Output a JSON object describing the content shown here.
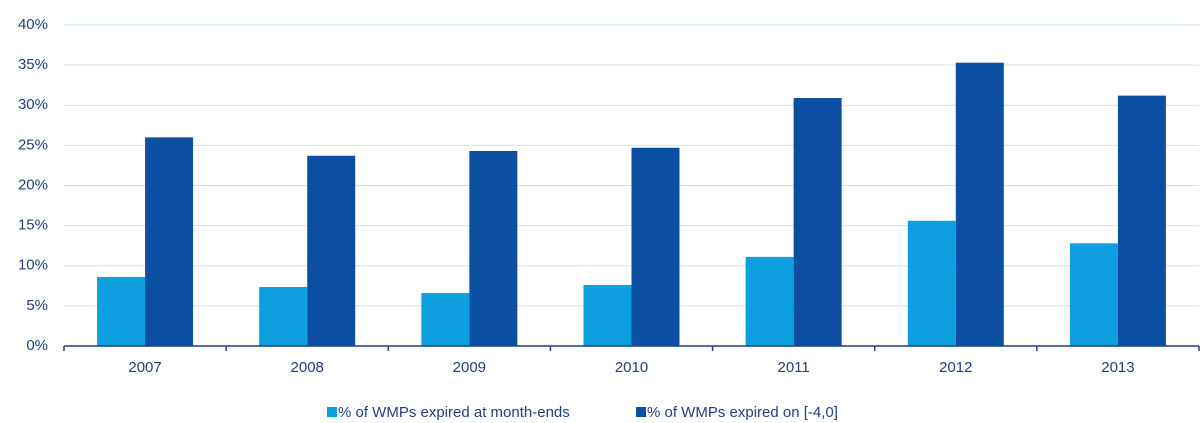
{
  "chart_data": {
    "type": "bar",
    "categories": [
      "2007",
      "2008",
      "2009",
      "2010",
      "2011",
      "2012",
      "2013"
    ],
    "series": [
      {
        "name": "% of WMPs expired at month-ends",
        "color": "#0d9fe0",
        "values": [
          8.6,
          7.35,
          6.6,
          7.6,
          11.1,
          15.6,
          12.8
        ]
      },
      {
        "name": "% of WMPs expired on [-4,0]",
        "color": "#0b4fa3",
        "values": [
          26.0,
          23.7,
          24.3,
          24.7,
          30.9,
          35.3,
          31.2
        ]
      }
    ],
    "ylim": [
      0,
      40
    ],
    "yticks": [
      {
        "value": 0,
        "label": "0%"
      },
      {
        "value": 5,
        "label": "5%"
      },
      {
        "value": 10,
        "label": "10%"
      },
      {
        "value": 15,
        "label": "15%"
      },
      {
        "value": 20,
        "label": "20%"
      },
      {
        "value": 25,
        "label": "25%"
      },
      {
        "value": 30,
        "label": "30%"
      },
      {
        "value": 35,
        "label": "35%"
      },
      {
        "value": 40,
        "label": "40%"
      }
    ],
    "grid": true,
    "legend": "bottom"
  }
}
